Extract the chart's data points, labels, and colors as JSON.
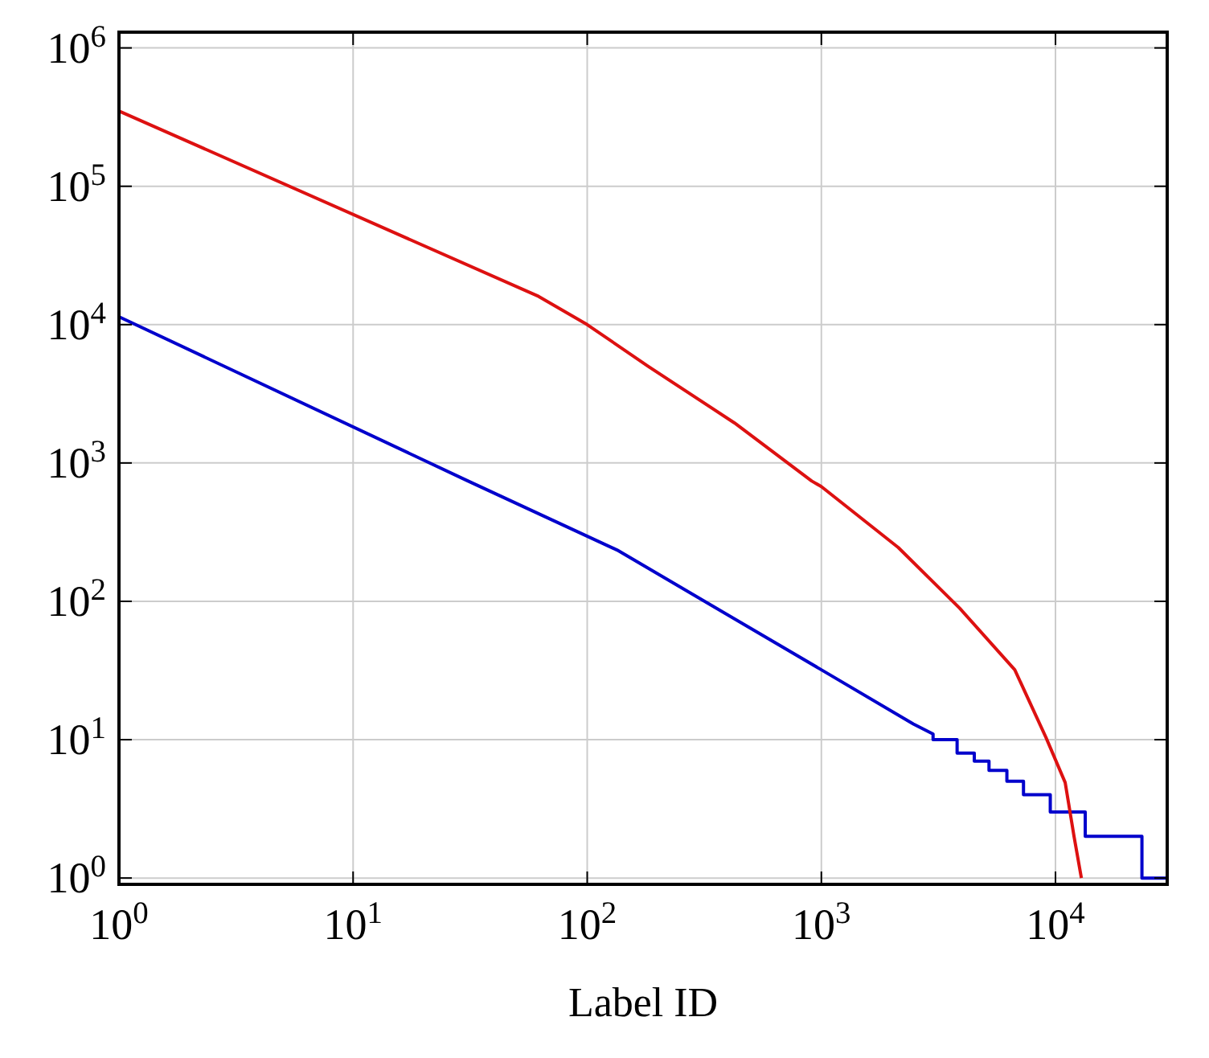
{
  "chart_data": {
    "type": "line",
    "xlabel": "Label ID",
    "log": "xy",
    "grid": true,
    "line_style": "solid",
    "xlim": [
      1,
      30000
    ],
    "ylim": [
      0.9,
      1300000
    ],
    "xticks": [
      {
        "value": 1,
        "label": "10$^{0}$"
      },
      {
        "value": 10,
        "label": "10$^{1}$"
      },
      {
        "value": 100,
        "label": "10$^{2}$"
      },
      {
        "value": 1000,
        "label": "10$^{3}$"
      },
      {
        "value": 10000,
        "label": "10$^{4}$"
      }
    ],
    "yticks": [
      {
        "value": 1,
        "label": "10$^{0}$"
      },
      {
        "value": 10,
        "label": "10$^{1}$"
      },
      {
        "value": 100,
        "label": "10$^{2}$"
      },
      {
        "value": 1000,
        "label": "10$^{3}$"
      },
      {
        "value": 10000,
        "label": "10$^{4}$"
      },
      {
        "value": 100000,
        "label": "10$^{5}$"
      },
      {
        "value": 1000000,
        "label": "10$^{6}$"
      }
    ],
    "series": [
      {
        "color": "#0000cc",
        "x": [
          1,
          31,
          134,
          1000,
          2470,
          3000,
          3000,
          3800,
          3800,
          4500,
          4500,
          5200,
          5200,
          6200,
          6200,
          7300,
          7300,
          9500,
          9500,
          13400,
          13400,
          23400,
          23400,
          30000
        ],
        "values": [
          11400,
          740,
          235,
          32,
          13,
          11,
          10,
          10,
          8,
          8,
          7,
          7,
          6,
          6,
          5,
          5,
          4,
          4,
          3,
          3,
          2,
          2,
          1,
          1
        ]
      },
      {
        "color": "#dd1111",
        "x": [
          1,
          62,
          100,
          182,
          425,
          910,
          1000,
          2130,
          3900,
          6700,
          9100,
          11000,
          12000,
          12900
        ],
        "values": [
          350000,
          16000,
          10000,
          5000,
          1950,
          740,
          675,
          245,
          89,
          32,
          10.4,
          4.9,
          2,
          1
        ]
      }
    ]
  }
}
